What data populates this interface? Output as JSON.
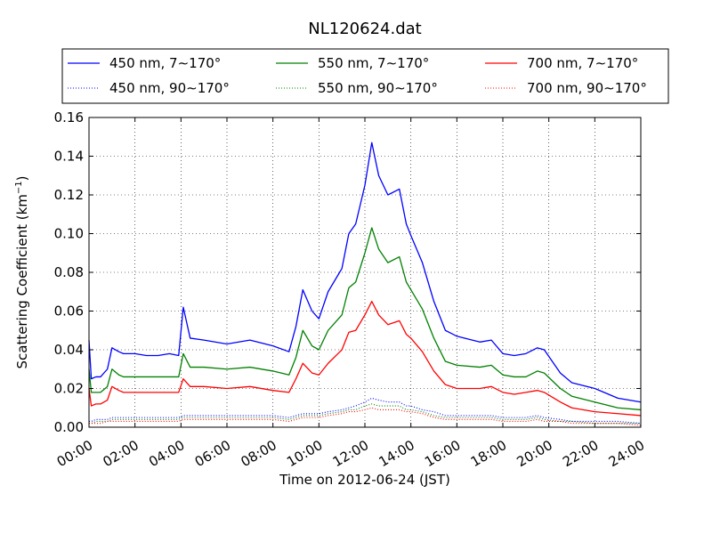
{
  "chart_data": {
    "type": "line",
    "title": "NL120624.dat",
    "xlabel": "Time on 2012-06-24 (JST)",
    "ylabel": "Scattering Coefficient (km",
    "ylabel_sup": "−1",
    "ylabel_close": ")",
    "xlim": [
      0,
      24
    ],
    "ylim": [
      0,
      0.16
    ],
    "x_ticks": [
      0,
      2,
      4,
      6,
      8,
      10,
      12,
      14,
      16,
      18,
      20,
      22,
      24
    ],
    "x_tick_labels": [
      "00:00",
      "02:00",
      "04:00",
      "06:00",
      "08:00",
      "10:00",
      "12:00",
      "14:00",
      "16:00",
      "18:00",
      "20:00",
      "22:00",
      "24:00"
    ],
    "y_ticks": [
      0,
      0.02,
      0.04,
      0.06,
      0.08,
      0.1,
      0.12,
      0.14,
      0.16
    ],
    "y_tick_labels": [
      "0.00",
      "0.02",
      "0.04",
      "0.06",
      "0.08",
      "0.10",
      "0.12",
      "0.14",
      "0.16"
    ],
    "grid": true,
    "legend_position": "top",
    "colors": {
      "blue": "#0000ff",
      "green": "#008000",
      "red": "#ff0000"
    },
    "x": [
      0,
      0.1,
      0.3,
      0.5,
      0.8,
      1,
      1.3,
      1.5,
      2,
      2.5,
      3,
      3.5,
      3.9,
      4.1,
      4.4,
      5,
      6,
      7,
      8,
      8.7,
      9,
      9.3,
      9.7,
      10,
      10.4,
      11,
      11.3,
      11.6,
      12,
      12.3,
      12.6,
      13,
      13.5,
      13.8,
      14,
      14.5,
      15,
      15.5,
      16,
      17,
      17.5,
      18,
      18.5,
      19,
      19.5,
      19.8,
      20.5,
      21,
      22,
      23,
      24
    ],
    "series": [
      {
        "name": "450 nm, 7∼170°",
        "color": "#0000ff",
        "style": "solid",
        "values": [
          0.045,
          0.025,
          0.026,
          0.026,
          0.03,
          0.041,
          0.039,
          0.038,
          0.038,
          0.037,
          0.037,
          0.038,
          0.037,
          0.062,
          0.046,
          0.045,
          0.043,
          0.045,
          0.042,
          0.039,
          0.052,
          0.071,
          0.06,
          0.056,
          0.07,
          0.082,
          0.1,
          0.105,
          0.125,
          0.147,
          0.13,
          0.12,
          0.123,
          0.105,
          0.099,
          0.085,
          0.065,
          0.05,
          0.047,
          0.044,
          0.045,
          0.038,
          0.037,
          0.038,
          0.041,
          0.04,
          0.028,
          0.023,
          0.02,
          0.015,
          0.013
        ]
      },
      {
        "name": "550 nm, 7∼170°",
        "color": "#008000",
        "style": "solid",
        "values": [
          0.03,
          0.018,
          0.018,
          0.018,
          0.021,
          0.03,
          0.027,
          0.026,
          0.026,
          0.026,
          0.026,
          0.026,
          0.026,
          0.038,
          0.031,
          0.031,
          0.03,
          0.031,
          0.029,
          0.027,
          0.036,
          0.05,
          0.042,
          0.04,
          0.05,
          0.058,
          0.072,
          0.075,
          0.09,
          0.103,
          0.092,
          0.085,
          0.088,
          0.075,
          0.071,
          0.061,
          0.046,
          0.034,
          0.032,
          0.031,
          0.032,
          0.027,
          0.026,
          0.026,
          0.029,
          0.028,
          0.02,
          0.016,
          0.013,
          0.01,
          0.009
        ]
      },
      {
        "name": "700 nm, 7∼170°",
        "color": "#ff0000",
        "style": "solid",
        "values": [
          0.02,
          0.011,
          0.012,
          0.012,
          0.014,
          0.021,
          0.019,
          0.018,
          0.018,
          0.018,
          0.018,
          0.018,
          0.018,
          0.025,
          0.021,
          0.021,
          0.02,
          0.021,
          0.019,
          0.018,
          0.025,
          0.033,
          0.028,
          0.027,
          0.033,
          0.04,
          0.049,
          0.05,
          0.058,
          0.065,
          0.058,
          0.053,
          0.055,
          0.048,
          0.046,
          0.039,
          0.029,
          0.022,
          0.02,
          0.02,
          0.021,
          0.018,
          0.017,
          0.018,
          0.019,
          0.018,
          0.013,
          0.01,
          0.008,
          0.007,
          0.006
        ]
      },
      {
        "name": "450 nm, 90∼170°",
        "color": "#0000ff",
        "style": "dotted",
        "values": [
          0.003,
          0.003,
          0.004,
          0.004,
          0.004,
          0.005,
          0.005,
          0.005,
          0.005,
          0.005,
          0.005,
          0.005,
          0.005,
          0.006,
          0.006,
          0.006,
          0.006,
          0.006,
          0.006,
          0.005,
          0.006,
          0.007,
          0.007,
          0.007,
          0.008,
          0.009,
          0.01,
          0.011,
          0.013,
          0.015,
          0.014,
          0.013,
          0.013,
          0.011,
          0.011,
          0.009,
          0.008,
          0.006,
          0.006,
          0.006,
          0.006,
          0.005,
          0.005,
          0.005,
          0.006,
          0.005,
          0.004,
          0.003,
          0.003,
          0.003,
          0.002
        ]
      },
      {
        "name": "550 nm, 90∼170°",
        "color": "#008000",
        "style": "dotted",
        "values": [
          0.002,
          0.002,
          0.003,
          0.003,
          0.003,
          0.004,
          0.004,
          0.004,
          0.004,
          0.004,
          0.004,
          0.004,
          0.004,
          0.005,
          0.005,
          0.005,
          0.005,
          0.005,
          0.005,
          0.004,
          0.005,
          0.006,
          0.006,
          0.006,
          0.007,
          0.008,
          0.009,
          0.009,
          0.011,
          0.012,
          0.011,
          0.011,
          0.011,
          0.009,
          0.009,
          0.008,
          0.006,
          0.005,
          0.005,
          0.005,
          0.005,
          0.004,
          0.004,
          0.004,
          0.005,
          0.004,
          0.003,
          0.003,
          0.002,
          0.002,
          0.002
        ]
      },
      {
        "name": "700 nm, 90∼170°",
        "color": "#ff0000",
        "style": "dotted",
        "values": [
          0.002,
          0.002,
          0.002,
          0.002,
          0.003,
          0.003,
          0.003,
          0.003,
          0.003,
          0.003,
          0.003,
          0.003,
          0.003,
          0.004,
          0.004,
          0.004,
          0.004,
          0.004,
          0.004,
          0.003,
          0.004,
          0.005,
          0.005,
          0.005,
          0.006,
          0.007,
          0.008,
          0.008,
          0.009,
          0.01,
          0.009,
          0.009,
          0.009,
          0.008,
          0.008,
          0.007,
          0.005,
          0.004,
          0.004,
          0.004,
          0.004,
          0.003,
          0.003,
          0.003,
          0.004,
          0.003,
          0.003,
          0.002,
          0.002,
          0.002,
          0.001
        ]
      }
    ]
  }
}
